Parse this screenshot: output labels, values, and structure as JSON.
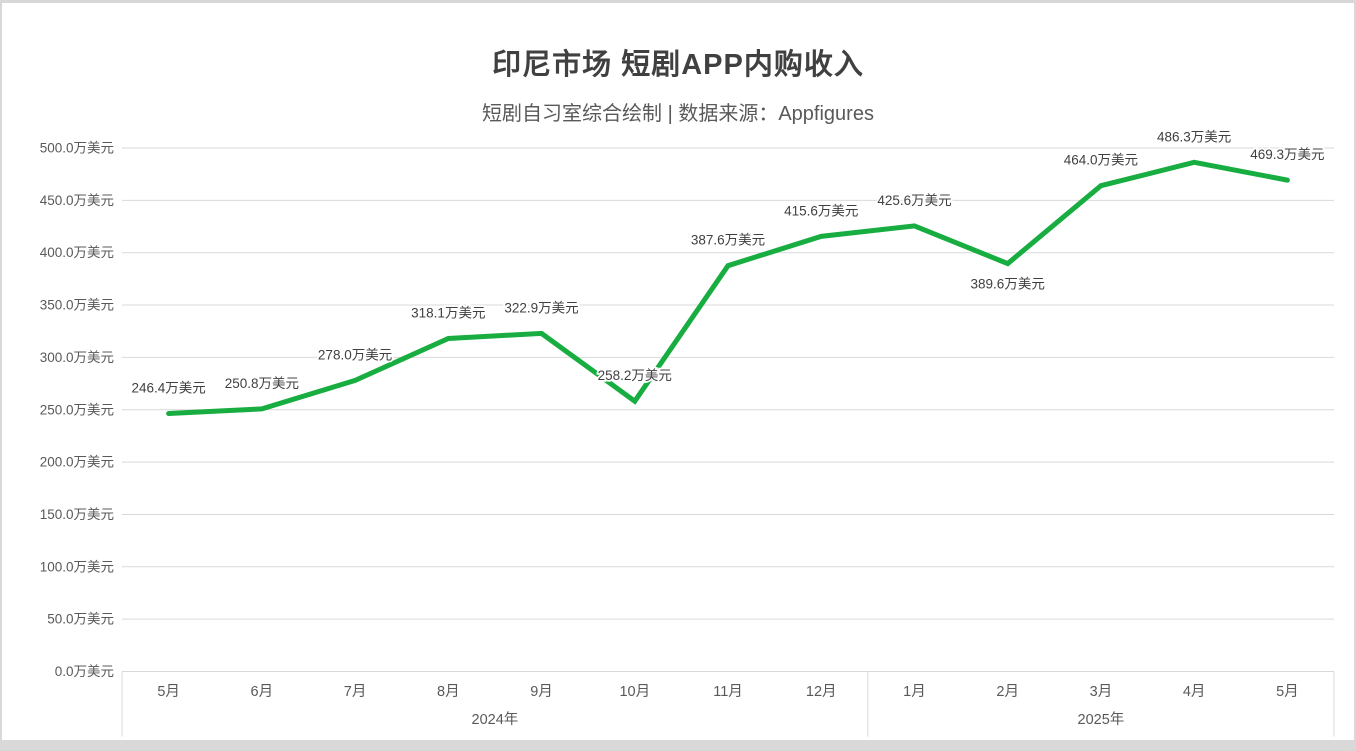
{
  "window": {
    "background": "#ffffff",
    "frame_color": "#d9d9d9"
  },
  "chart": {
    "title": "印尼市场 短剧APP内购收入",
    "subtitle": "短剧自习室综合绘制 | 数据来源：Appfigures",
    "line_color": "#17AD40",
    "title_color": "#404040",
    "axis_text_color": "#595959",
    "data_label_color": "#404040",
    "gridline_color": "#D9D9D9"
  },
  "chart_data": {
    "type": "line",
    "title": "印尼市场 短剧APP内购收入",
    "subtitle": "短剧自习室综合绘制 | 数据来源：Appfigures",
    "unit": "万美元",
    "categories": [
      "5月",
      "6月",
      "7月",
      "8月",
      "9月",
      "10月",
      "11月",
      "12月",
      "1月",
      "2月",
      "3月",
      "4月",
      "5月"
    ],
    "year_groups": [
      {
        "label": "2024年",
        "count": 8
      },
      {
        "label": "2025年",
        "count": 5
      }
    ],
    "values": [
      246.4,
      250.8,
      278.0,
      318.1,
      322.9,
      258.2,
      387.6,
      415.6,
      425.6,
      389.6,
      464.0,
      486.3,
      469.3
    ],
    "data_labels": [
      "246.4万美元",
      "250.8万美元",
      "278.0万美元",
      "318.1万美元",
      "322.9万美元",
      "258.2万美元",
      "387.6万美元",
      "415.6万美元",
      "425.6万美元",
      "389.6万美元",
      "464.0万美元",
      "486.3万美元",
      "469.3万美元"
    ],
    "labels_below_indices": [
      9
    ],
    "ylim": [
      0,
      500
    ],
    "ytick_step": 50,
    "ytick_labels": [
      "0.0万美元",
      "50.0万美元",
      "100.0万美元",
      "150.0万美元",
      "200.0万美元",
      "250.0万美元",
      "300.0万美元",
      "350.0万美元",
      "400.0万美元",
      "450.0万美元",
      "500.0万美元"
    ],
    "grid": true,
    "legend": "none"
  }
}
